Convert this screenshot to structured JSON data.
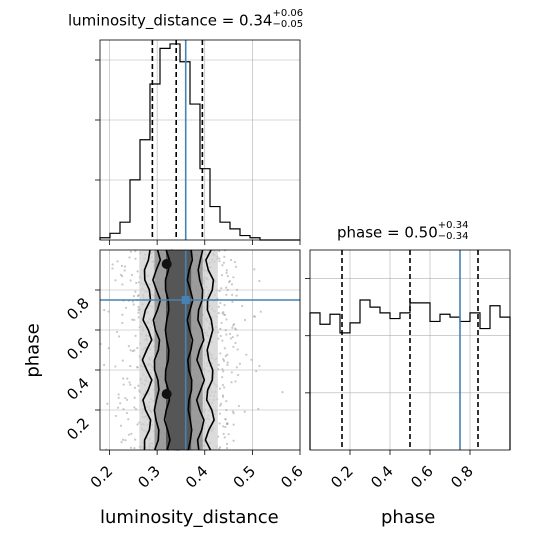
{
  "titles": {
    "panel1": {
      "prefix": "luminosity_distance = 0.34",
      "sup": "+0.06",
      "sub": "−0.05"
    },
    "panel3": {
      "prefix": "phase = 0.50",
      "sup": "+0.34",
      "sub": "−0.34"
    }
  },
  "labels": {
    "x_left": "luminosity_distance",
    "x_right": "phase",
    "y_left": "phase"
  },
  "colors": {
    "truth": "#4682b4",
    "hist": "#000000",
    "grid": "#b0b0b0",
    "density_dark": "#4a4a4a",
    "density_mid": "#8c8c8c",
    "density_light": "#cfcfcf"
  },
  "chart_data": [
    {
      "type": "histogram",
      "panel": "luminosity_distance marginal",
      "x_range": [
        0.18,
        0.6
      ],
      "bin_edges": [
        0.18,
        0.201,
        0.222,
        0.243,
        0.264,
        0.285,
        0.306,
        0.327,
        0.348,
        0.369,
        0.39,
        0.411,
        0.432,
        0.453,
        0.474,
        0.495,
        0.516,
        0.537,
        0.558,
        0.579,
        0.6
      ],
      "counts": [
        1,
        3,
        8,
        27,
        45,
        70,
        86,
        88,
        80,
        61,
        32,
        15,
        8,
        5,
        2,
        1,
        0,
        0,
        0,
        0
      ],
      "quantile_lines": [
        0.29,
        0.34,
        0.395
      ],
      "truth": 0.36,
      "grid": true
    },
    {
      "type": "scatter",
      "panel": "phase vs luminosity_distance 2D posterior",
      "x_range": [
        0.18,
        0.6
      ],
      "y_range": [
        0.0,
        1.0
      ],
      "x_ticks": [
        0.2,
        0.3,
        0.4,
        0.5,
        0.6
      ],
      "y_ticks": [
        0.2,
        0.4,
        0.6,
        0.8
      ],
      "density_center_x": 0.345,
      "contour_sigmas_x": [
        0.024,
        0.046,
        0.066
      ],
      "truth": {
        "x": 0.36,
        "y": 0.75
      },
      "grid": true
    },
    {
      "type": "histogram",
      "panel": "phase marginal",
      "x_range": [
        0.0,
        1.0
      ],
      "x_ticks": [
        0.2,
        0.4,
        0.6,
        0.8
      ],
      "bin_edges": [
        0.0,
        0.05,
        0.1,
        0.15,
        0.2,
        0.25,
        0.3,
        0.35,
        0.4,
        0.45,
        0.5,
        0.55,
        0.6,
        0.65,
        0.7,
        0.75,
        0.8,
        0.85,
        0.9,
        0.95,
        1.0
      ],
      "counts": [
        96,
        88,
        95,
        82,
        89,
        105,
        100,
        96,
        92,
        96,
        103,
        103,
        90,
        95,
        93,
        90,
        96,
        85,
        101,
        93
      ],
      "ylim": [
        0,
        140
      ],
      "quantile_lines": [
        0.16,
        0.5,
        0.84
      ],
      "truth": 0.75,
      "grid": true
    }
  ]
}
